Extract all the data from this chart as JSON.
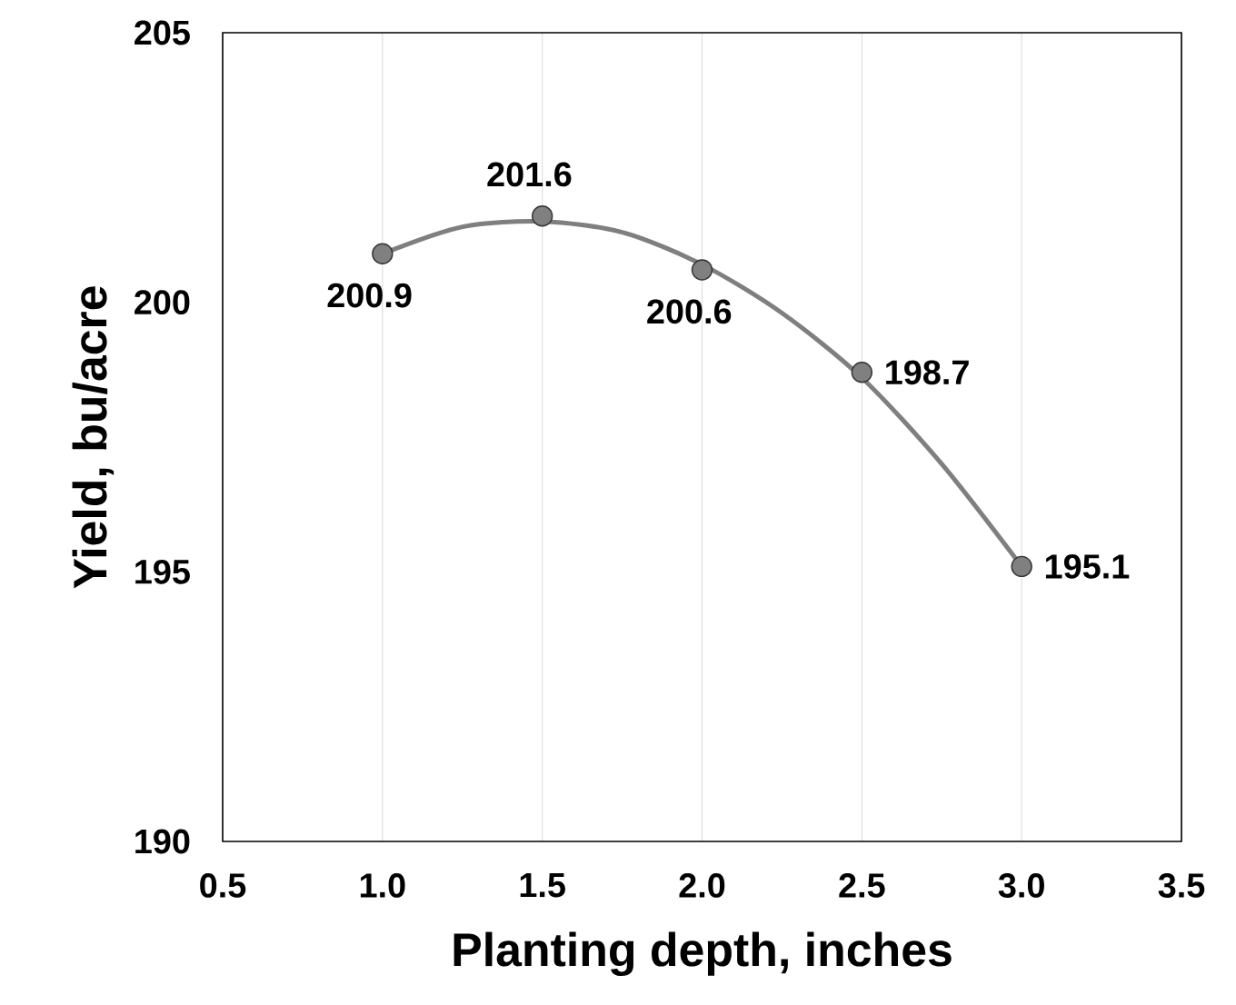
{
  "chart_data": {
    "type": "scatter",
    "xlabel": "Planting depth, inches",
    "ylabel": "Yield, bu/acre",
    "xlim": [
      0.5,
      3.5
    ],
    "ylim": [
      190,
      205
    ],
    "xticks": [
      {
        "value": 0.5,
        "label": "0.5"
      },
      {
        "value": 1,
        "label": "1.0"
      },
      {
        "value": 1.5,
        "label": "1.5"
      },
      {
        "value": 2,
        "label": "2.0"
      },
      {
        "value": 2.5,
        "label": "2.5"
      },
      {
        "value": 3,
        "label": "3.0"
      },
      {
        "value": 3.5,
        "label": "3.5"
      }
    ],
    "yticks": [
      190,
      195,
      200,
      205
    ],
    "grid": "x",
    "series": [
      {
        "marker": "circle",
        "x": [
          1,
          1.5,
          2,
          2.5,
          3
        ],
        "values": [
          200.9,
          201.6,
          200.6,
          198.7,
          195.1
        ],
        "value_labels": [
          "200.9",
          "201.6",
          "200.6",
          "198.7",
          "195.1"
        ],
        "color": "#808080"
      },
      {
        "type": "line",
        "x": [
          1,
          1.25,
          1.5,
          1.75,
          2,
          2.25,
          2.5,
          2.75,
          3
        ],
        "values": [
          200.9,
          201.4,
          201.5,
          201.3,
          200.7,
          199.8,
          198.6,
          197.0,
          195.1
        ],
        "color": "#7f7f7f",
        "marker": "none"
      }
    ]
  }
}
